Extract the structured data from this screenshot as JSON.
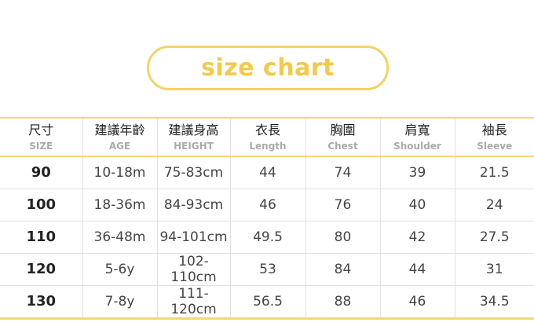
{
  "title": "size chart",
  "colors": {
    "accent": "#f4c94a",
    "border": "#f7d67a"
  },
  "headers": [
    {
      "zh": "尺寸",
      "en": "SIZE"
    },
    {
      "zh": "建議年齡",
      "en": "AGE"
    },
    {
      "zh": "建議身高",
      "en": "HEIGHT"
    },
    {
      "zh": "衣長",
      "en": "Length"
    },
    {
      "zh": "胸圍",
      "en": "Chest"
    },
    {
      "zh": "肩寬",
      "en": "Shoulder"
    },
    {
      "zh": "袖長",
      "en": "Sleeve"
    }
  ],
  "rows": [
    [
      "90",
      "10-18m",
      "75-83cm",
      "44",
      "74",
      "39",
      "21.5"
    ],
    [
      "100",
      "18-36m",
      "84-93cm",
      "46",
      "76",
      "40",
      "24"
    ],
    [
      "110",
      "36-48m",
      "94-101cm",
      "49.5",
      "80",
      "42",
      "27.5"
    ],
    [
      "120",
      "5-6y",
      "102-110cm",
      "53",
      "84",
      "44",
      "31"
    ],
    [
      "130",
      "7-8y",
      "111-120cm",
      "56.5",
      "88",
      "46",
      "34.5"
    ]
  ]
}
